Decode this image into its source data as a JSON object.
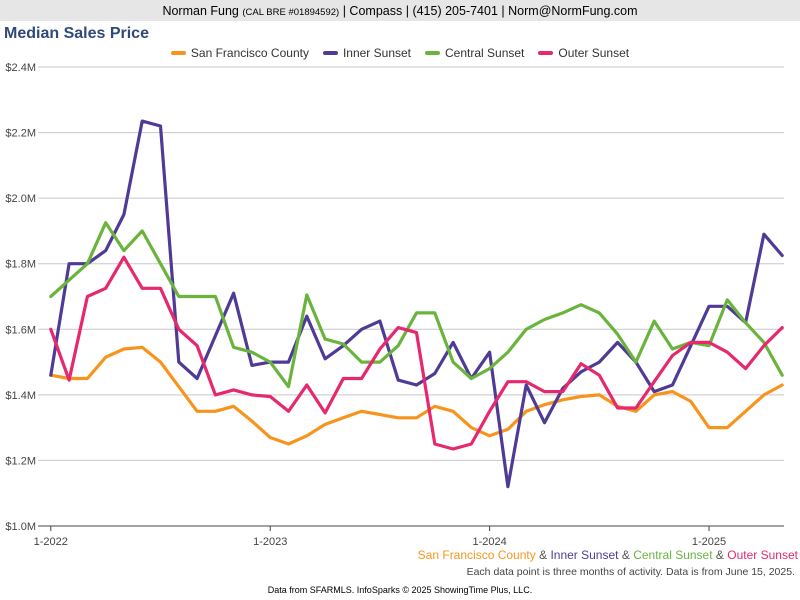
{
  "header": {
    "agent_name": "Norman Fung",
    "license": "(CAL BRE #01894592)",
    "separator": "|",
    "company": "Compass",
    "phone": "(415) 205-7401",
    "email": "Norm@NormFung.com"
  },
  "footer": {
    "and": "&",
    "note": "Each data point is three months of activity. Data is from June 15, 2025.",
    "source": "Data from SFARMLS. InfoSparks © 2025 ShowingTime Plus, LLC."
  },
  "colors": {
    "grid": "#c8c8c8",
    "axis": "#444444",
    "title": "#2f4a78"
  },
  "chart_data": {
    "type": "line",
    "title": "Median Sales Price",
    "xlabel": "",
    "ylabel": "",
    "ylim": [
      1.0,
      2.4
    ],
    "y_unit": "millions of dollars",
    "yticks": [
      1.0,
      1.2,
      1.4,
      1.6,
      1.8,
      2.0,
      2.2,
      2.4
    ],
    "ytick_labels": [
      "$1.0M",
      "$1.2M",
      "$1.4M",
      "$1.6M",
      "$1.8M",
      "$2.0M",
      "$2.2M",
      "$2.4M"
    ],
    "grid": true,
    "legend_position": "top",
    "x": [
      "2022-01",
      "2022-02",
      "2022-03",
      "2022-04",
      "2022-05",
      "2022-06",
      "2022-07",
      "2022-08",
      "2022-09",
      "2022-10",
      "2022-11",
      "2022-12",
      "2023-01",
      "2023-02",
      "2023-03",
      "2023-04",
      "2023-05",
      "2023-06",
      "2023-07",
      "2023-08",
      "2023-09",
      "2023-10",
      "2023-11",
      "2023-12",
      "2024-01",
      "2024-02",
      "2024-03",
      "2024-04",
      "2024-05",
      "2024-06",
      "2024-07",
      "2024-08",
      "2024-09",
      "2024-10",
      "2024-11",
      "2024-12",
      "2025-01",
      "2025-02",
      "2025-03",
      "2025-04",
      "2025-05"
    ],
    "xticks": [
      "2022-01",
      "2023-01",
      "2024-01",
      "2025-01"
    ],
    "xtick_labels": [
      "1-2022",
      "1-2023",
      "1-2024",
      "1-2025"
    ],
    "series": [
      {
        "name": "San Francisco County",
        "color": "#f7941d",
        "values": [
          1.46,
          1.45,
          1.45,
          1.515,
          1.54,
          1.545,
          1.5,
          1.425,
          1.35,
          1.35,
          1.365,
          1.32,
          1.27,
          1.25,
          1.275,
          1.31,
          1.33,
          1.35,
          1.34,
          1.33,
          1.33,
          1.365,
          1.35,
          1.3,
          1.275,
          1.295,
          1.35,
          1.37,
          1.385,
          1.395,
          1.4,
          1.365,
          1.35,
          1.4,
          1.41,
          1.38,
          1.3,
          1.3,
          1.35,
          1.4,
          1.43
        ]
      },
      {
        "name": "Inner Sunset",
        "color": "#4f3b96",
        "values": [
          1.46,
          1.8,
          1.8,
          1.84,
          1.95,
          2.235,
          2.22,
          1.5,
          1.45,
          1.58,
          1.71,
          1.49,
          1.5,
          1.5,
          1.64,
          1.51,
          1.55,
          1.6,
          1.625,
          1.445,
          1.43,
          1.465,
          1.56,
          1.45,
          1.53,
          1.12,
          1.43,
          1.315,
          1.42,
          1.47,
          1.5,
          1.56,
          1.5,
          1.41,
          1.43,
          1.55,
          1.67,
          1.67,
          1.62,
          1.89,
          1.825
        ]
      },
      {
        "name": "Central Sunset",
        "color": "#6ab43e",
        "values": [
          1.7,
          1.75,
          1.8,
          1.925,
          1.84,
          1.9,
          1.8,
          1.7,
          1.7,
          1.7,
          1.545,
          1.53,
          1.5,
          1.425,
          1.705,
          1.57,
          1.555,
          1.5,
          1.5,
          1.55,
          1.65,
          1.65,
          1.5,
          1.45,
          1.48,
          1.53,
          1.6,
          1.63,
          1.65,
          1.675,
          1.65,
          1.585,
          1.5,
          1.625,
          1.54,
          1.56,
          1.55,
          1.69,
          1.62,
          1.56,
          1.46
        ]
      },
      {
        "name": "Outer Sunset",
        "color": "#e6286e",
        "values": [
          1.6,
          1.445,
          1.7,
          1.725,
          1.82,
          1.725,
          1.725,
          1.6,
          1.55,
          1.4,
          1.415,
          1.4,
          1.395,
          1.35,
          1.43,
          1.345,
          1.45,
          1.45,
          1.54,
          1.605,
          1.59,
          1.25,
          1.235,
          1.25,
          1.35,
          1.44,
          1.44,
          1.41,
          1.41,
          1.495,
          1.46,
          1.36,
          1.36,
          1.44,
          1.52,
          1.56,
          1.56,
          1.53,
          1.48,
          1.55,
          1.605
        ]
      }
    ]
  }
}
